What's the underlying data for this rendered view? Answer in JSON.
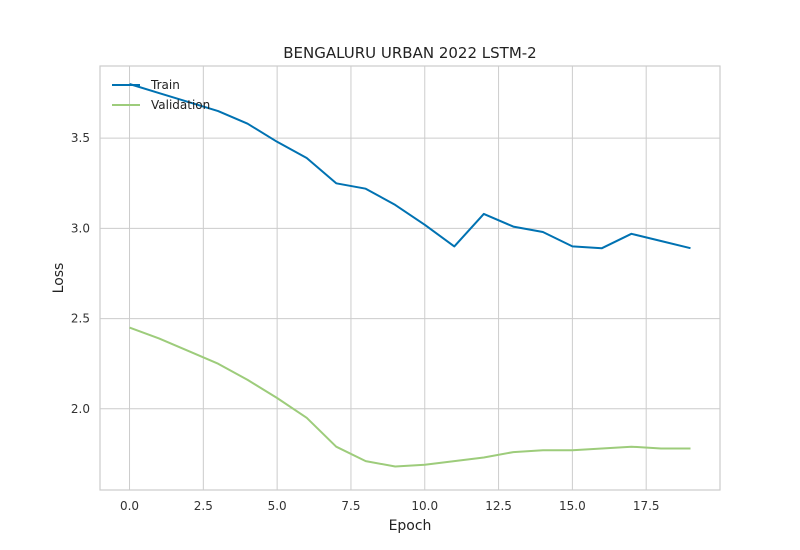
{
  "chart_data": {
    "type": "line",
    "title": "BENGALURU URBAN 2022 LSTM-2",
    "xlabel": "Epoch",
    "ylabel": "Loss",
    "x": [
      0,
      1,
      2,
      3,
      4,
      5,
      6,
      7,
      8,
      9,
      10,
      11,
      12,
      13,
      14,
      15,
      16,
      17,
      18,
      19
    ],
    "xlim": [
      -1,
      20
    ],
    "ylim": [
      1.55,
      3.9
    ],
    "xticks": [
      "0.0",
      "2.5",
      "5.0",
      "7.5",
      "10.0",
      "12.5",
      "15.0",
      "17.5"
    ],
    "yticks": [
      "2.0",
      "2.5",
      "3.0",
      "3.5"
    ],
    "grid": true,
    "legend_position": "top-left",
    "series": [
      {
        "name": "Train",
        "color": "#0072b2",
        "values": [
          3.8,
          3.75,
          3.7,
          3.65,
          3.58,
          3.48,
          3.39,
          3.25,
          3.22,
          3.13,
          3.02,
          2.9,
          3.08,
          3.01,
          2.98,
          2.9,
          2.89,
          2.97,
          2.93,
          2.89
        ]
      },
      {
        "name": "Validation",
        "color": "#9dcc7b",
        "values": [
          2.45,
          2.39,
          2.32,
          2.25,
          2.16,
          2.06,
          1.95,
          1.79,
          1.71,
          1.68,
          1.69,
          1.71,
          1.73,
          1.76,
          1.77,
          1.77,
          1.78,
          1.79,
          1.78,
          1.78
        ]
      }
    ]
  }
}
